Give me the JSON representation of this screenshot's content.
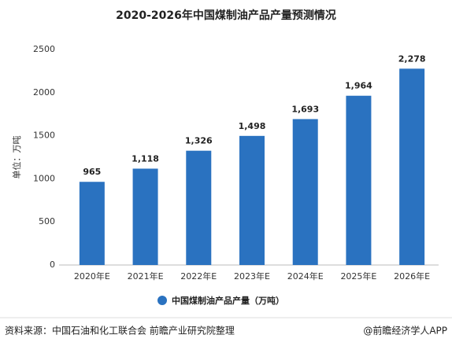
{
  "chart_data": {
    "type": "bar",
    "title": "2020-2026年中国煤制油产品产量预测情况",
    "y_label": "单位：万吨",
    "categories": [
      "2020年E",
      "2021年E",
      "2022年E",
      "2023年E",
      "2024年E",
      "2025年E",
      "2026年E"
    ],
    "series": [
      {
        "name": "中国煤制油产品产量（万吨）",
        "color": "#2a72c0",
        "values": [
          965,
          1118,
          1326,
          1498,
          1693,
          1964,
          2278
        ],
        "value_labels": [
          "965",
          "1,118",
          "1,326",
          "1,498",
          "1,693",
          "1,964",
          "2,278"
        ]
      }
    ],
    "ylim": [
      0,
      2500
    ],
    "yticks": [
      0,
      500,
      1000,
      1500,
      2000,
      2500
    ],
    "grid": false,
    "legend": "bottom"
  },
  "footer": {
    "source": "资料来源：中国石油和化工联合会 前瞻产业研究院整理",
    "credit": "@前瞻经济学人APP"
  }
}
